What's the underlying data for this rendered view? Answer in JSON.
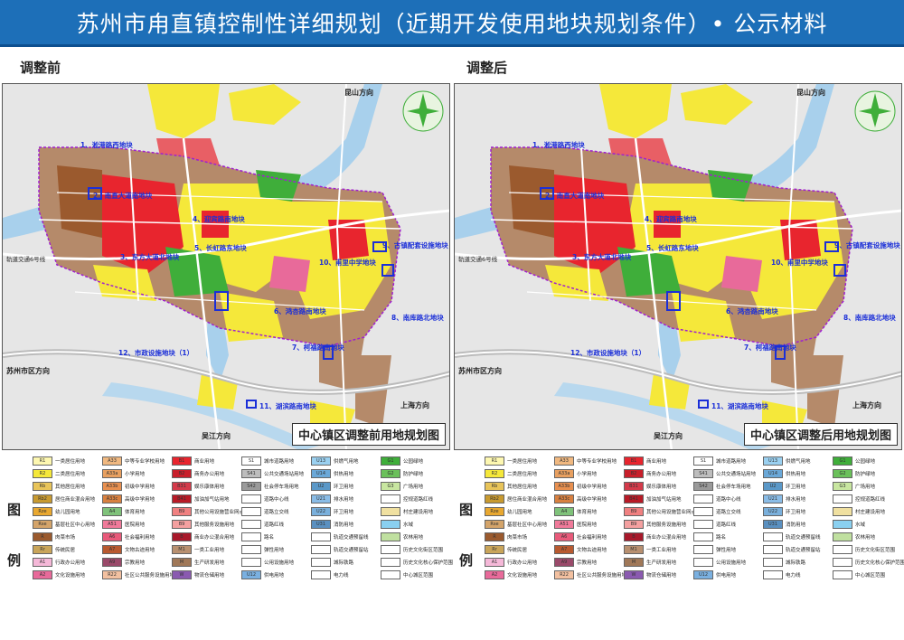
{
  "title": "苏州市甪直镇控制性详细规划（近期开发使用地块规划条件）• 公示材料",
  "panels": [
    {
      "label": "调整前",
      "caption": "中心镇区调整前用地规划图",
      "directions": {
        "north": "昆山方向",
        "west": "苏州市区方向",
        "east": "上海方向",
        "south": "吴江方向",
        "rail": "轨道交通6号线"
      },
      "parcels": [
        "1、淞港路西地块",
        "2、南直大道南地块",
        "3、东方大道北地块",
        "4、迎宾路南地块",
        "5、长虹路东地块",
        "6、鸿杏路南地块",
        "7、柯福路南地块",
        "8、南库路北地块",
        "9、古镇配套设施地块",
        "10、甫里中学地块",
        "11、湖滨路南地块",
        "12、市政设施地块（1）"
      ]
    },
    {
      "label": "调整后",
      "caption": "中心镇区调整后用地规划图",
      "directions": {
        "north": "昆山方向",
        "west": "苏州市区方向",
        "east": "上海方向",
        "south": "吴江方向",
        "rail": "轨道交通6号线"
      },
      "parcels": [
        "1、淞港路西地块",
        "2、南直大道南地块",
        "3、东方大道北地块",
        "4、迎宾路南地块",
        "5、长虹路东地块",
        "6、鸿杏路南地块",
        "7、柯福路南地块",
        "8、南库路北地块",
        "9、古镇配套设施地块",
        "10、甫里中学地块",
        "11、湖滨路南地块",
        "12、市政设施地块（1）"
      ]
    }
  ],
  "legend_title": [
    "图",
    "例"
  ],
  "legend_columns": [
    [
      {
        "code": "R1",
        "label": "一类居住用地",
        "color": "#fdf7b0"
      },
      {
        "code": "R2",
        "label": "二类居住用地",
        "color": "#f5e83a"
      },
      {
        "code": "Rb",
        "label": "其他居住用地",
        "color": "#e8c45a"
      },
      {
        "code": "Rb2",
        "label": "居住商业混合用地",
        "color": "#c89a30"
      },
      {
        "code": "Rze",
        "label": "幼儿园用地",
        "color": "#e9a830"
      },
      {
        "code": "Rse",
        "label": "基层社区中心用地",
        "color": "#d4a46a"
      },
      {
        "code": "R",
        "label": "肉菜市场",
        "color": "#9b5a2e"
      },
      {
        "code": "Rr",
        "label": "传统民居",
        "color": "#c9a55a"
      },
      {
        "code": "A1",
        "label": "行政办公用地",
        "color": "#f5b8d8"
      },
      {
        "code": "A2",
        "label": "文化设施用地",
        "color": "#e86a9a"
      }
    ],
    [
      {
        "code": "A33",
        "label": "中等专业学校用地",
        "color": "#f0b880"
      },
      {
        "code": "A33a",
        "label": "小学用地",
        "color": "#e8a060"
      },
      {
        "code": "A33b",
        "label": "初级中学用地",
        "color": "#e89050"
      },
      {
        "code": "A33c",
        "label": "高级中学用地",
        "color": "#d88040"
      },
      {
        "code": "A4",
        "label": "体育用地",
        "color": "#7fc27a"
      },
      {
        "code": "A51",
        "label": "医院用地",
        "color": "#f07a9a"
      },
      {
        "code": "A6",
        "label": "社会福利用地",
        "color": "#e85a7a"
      },
      {
        "code": "A7",
        "label": "文物古迹用地",
        "color": "#b85a30"
      },
      {
        "code": "A9",
        "label": "宗教用地",
        "color": "#9a4a6a"
      },
      {
        "code": "R22",
        "label": "社区公共服务设施用地",
        "color": "#f2c0a0"
      }
    ],
    [
      {
        "code": "B1",
        "label": "商业用地",
        "color": "#e8252e"
      },
      {
        "code": "B2",
        "label": "商务办公用地",
        "color": "#c81e2a"
      },
      {
        "code": "B31",
        "label": "娱乐康体用地",
        "color": "#d43a4a"
      },
      {
        "code": "B41",
        "label": "加油加气站用地",
        "color": "#b81a26"
      },
      {
        "code": "B9",
        "label": "其他公用设施营业网点用地",
        "color": "#f08080"
      },
      {
        "code": "B9",
        "label": "其他服务设施用地",
        "color": "#f4a0a0"
      },
      {
        "code": "B",
        "label": "商业办公混合用地",
        "color": "#a8182a"
      },
      {
        "code": "M1",
        "label": "一类工业用地",
        "color": "#b89070"
      },
      {
        "code": "M",
        "label": "生产研发用地",
        "color": "#a07858"
      },
      {
        "code": "W",
        "label": "物流仓储用地",
        "color": "#8a5ab0"
      }
    ],
    [
      {
        "code": "S1",
        "label": "城市道路用地",
        "color": "#ffffff"
      },
      {
        "code": "S41",
        "label": "公共交通场站用地",
        "color": "#bdbdbd"
      },
      {
        "code": "S42",
        "label": "社会停车场用地",
        "color": "#9a9a9a"
      },
      {
        "code": "",
        "label": "道路中心线",
        "color": "#ffffff"
      },
      {
        "code": "",
        "label": "道路立交线",
        "color": "#ffffff"
      },
      {
        "code": "",
        "label": "道路红线",
        "color": "#ffffff"
      },
      {
        "code": "",
        "label": "路名",
        "color": "#ffffff"
      },
      {
        "code": "",
        "label": "弹性用地",
        "color": "#ffffff"
      },
      {
        "code": "",
        "label": "公用设施用地",
        "color": "#ffffff"
      },
      {
        "code": "U12",
        "label": "供电用地",
        "color": "#7ab0e0"
      }
    ],
    [
      {
        "code": "U13",
        "label": "供燃气用地",
        "color": "#9ad0f0"
      },
      {
        "code": "U14",
        "label": "供热用地",
        "color": "#6aa8d8"
      },
      {
        "code": "U2",
        "label": "环卫用地",
        "color": "#5a98c8"
      },
      {
        "code": "U21",
        "label": "排水用地",
        "color": "#8abce6"
      },
      {
        "code": "U22",
        "label": "环卫用地",
        "color": "#7ab0dc"
      },
      {
        "code": "U31",
        "label": "消防用地",
        "color": "#5a90c0"
      },
      {
        "code": "",
        "label": "轨道交通预留线",
        "color": "#ffffff"
      },
      {
        "code": "",
        "label": "轨道交通预留站",
        "color": "#ffffff"
      },
      {
        "code": "",
        "label": "城际铁路",
        "color": "#ffffff"
      },
      {
        "code": "",
        "label": "电力线",
        "color": "#ffffff"
      }
    ],
    [
      {
        "code": "G1",
        "label": "公园绿地",
        "color": "#3fae3a"
      },
      {
        "code": "G2",
        "label": "防护绿地",
        "color": "#6ac05a"
      },
      {
        "code": "G3",
        "label": "广场用地",
        "color": "#c8e6a0"
      },
      {
        "code": "",
        "label": "控规道路红线",
        "color": "#ffffff"
      },
      {
        "code": "",
        "label": "村庄建设用地",
        "color": "#f0e0a0"
      },
      {
        "code": "",
        "label": "水域",
        "color": "#8ad0f0"
      },
      {
        "code": "",
        "label": "农林用地",
        "color": "#c0e0a0"
      },
      {
        "code": "",
        "label": "历史文化街区范围",
        "color": "#ffffff"
      },
      {
        "code": "",
        "label": "历史文化核心保护范围",
        "color": "#ffffff"
      },
      {
        "code": "",
        "label": "中心城区范围",
        "color": "#ffffff"
      }
    ]
  ],
  "colors": {
    "title_bg": "#1d6fb8",
    "parcel_label": "#1b2fd8",
    "water": "#9ec8e8",
    "residential": "#f5e83a",
    "commercial": "#e8252e",
    "green": "#3fae3a",
    "village": "#b58a6a"
  }
}
